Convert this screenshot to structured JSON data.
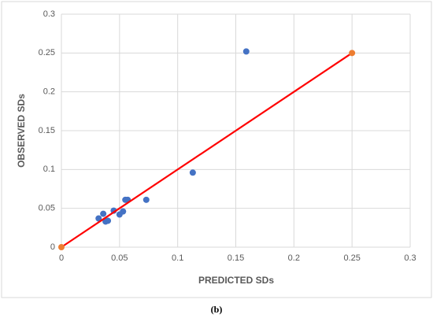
{
  "chart_data": {
    "type": "scatter",
    "x_label": "PREDICTED SDs",
    "y_label": "OBSERVED SDs",
    "caption": "(b)",
    "xlim": [
      0,
      0.3
    ],
    "ylim": [
      0,
      0.3
    ],
    "xticks": [
      0,
      0.05,
      0.1,
      0.15,
      0.2,
      0.25,
      0.3
    ],
    "yticks": [
      0,
      0.05,
      0.1,
      0.15,
      0.2,
      0.25,
      0.3
    ],
    "grid": true,
    "series": [
      {
        "type": "scatter",
        "color": "#4472c4",
        "x": [
          0.032,
          0.036,
          0.038,
          0.04,
          0.045,
          0.05,
          0.053,
          0.055,
          0.057,
          0.073,
          0.113,
          0.159
        ],
        "values": [
          0.037,
          0.043,
          0.033,
          0.034,
          0.047,
          0.042,
          0.046,
          0.061,
          0.061,
          0.061,
          0.096,
          0.252
        ]
      },
      {
        "type": "line",
        "color": "#ff0000",
        "marker_color": "#ed7d31",
        "x": [
          0,
          0.25
        ],
        "values": [
          0,
          0.25
        ]
      }
    ]
  }
}
